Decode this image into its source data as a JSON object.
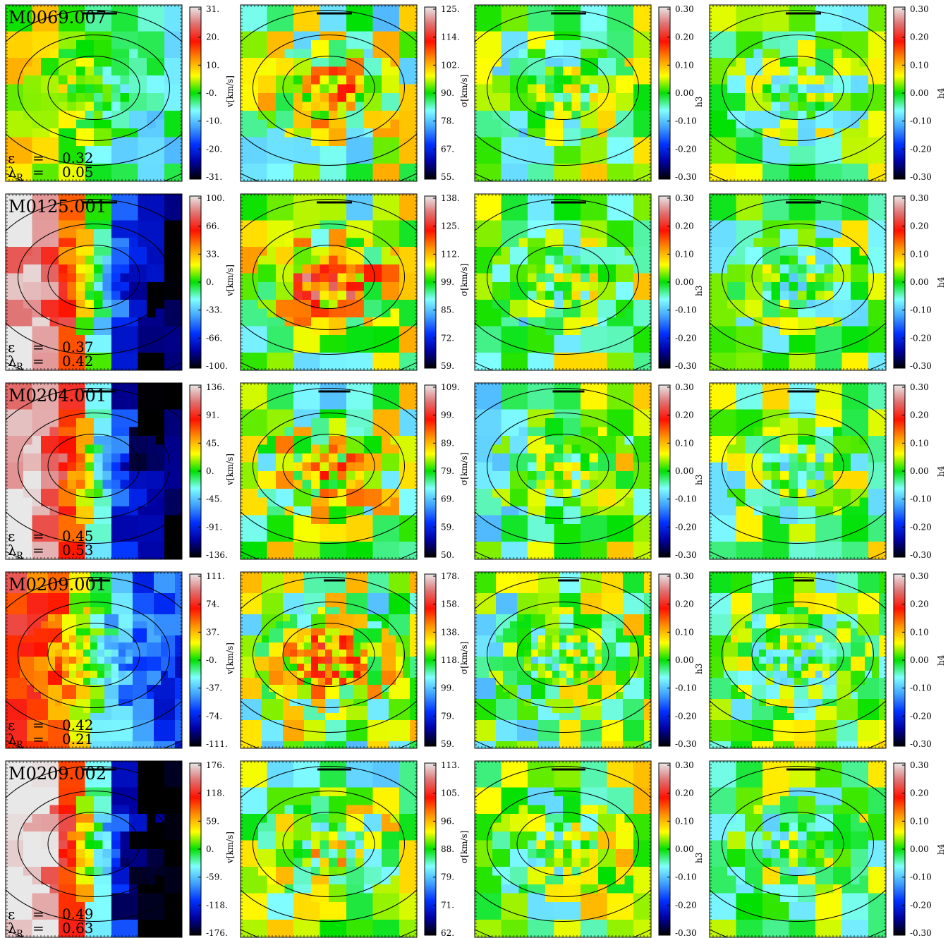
{
  "chart_data": {
    "type": "heatmap",
    "columns": [
      {
        "quantity": "v",
        "cbar_label": "v[km/s]"
      },
      {
        "quantity": "sigma",
        "cbar_label": "σ[km/s]"
      },
      {
        "quantity": "h3",
        "cbar_label": "h3"
      },
      {
        "quantity": "h4",
        "cbar_label": "h4"
      }
    ],
    "hermite_ticks": [
      "0.30",
      "0.20",
      "0.10",
      "0.00",
      "-0.10",
      "-0.20",
      "-0.30"
    ],
    "galaxies": [
      {
        "id": "M0069.007",
        "epsilon": "0.32",
        "lambda_R": "0.05",
        "v_ticks": [
          "31.",
          "20.",
          "10.",
          "-0.",
          "-10.",
          "-20.",
          "-31."
        ],
        "sigma_ticks": [
          "125.",
          "114.",
          "102.",
          "90.",
          "78.",
          "67.",
          "55."
        ]
      },
      {
        "id": "M0125.001",
        "epsilon": "0.37",
        "lambda_R": "0.42",
        "v_ticks": [
          "100.",
          "66.",
          "33.",
          "0.",
          "-33.",
          "-66.",
          "-100."
        ],
        "sigma_ticks": [
          "138.",
          "125.",
          "112.",
          "99.",
          "85.",
          "72.",
          "59."
        ]
      },
      {
        "id": "M0204.001",
        "epsilon": "0.45",
        "lambda_R": "0.53",
        "v_ticks": [
          "136.",
          "91.",
          "45.",
          "0.",
          "-45.",
          "-91.",
          "-136."
        ],
        "sigma_ticks": [
          "109.",
          "99.",
          "89.",
          "79.",
          "69.",
          "59.",
          "50."
        ]
      },
      {
        "id": "M0209.001",
        "epsilon": "0.42",
        "lambda_R": "0.21",
        "v_ticks": [
          "111.",
          "74.",
          "37.",
          "-0.",
          "-37.",
          "-74.",
          "-111."
        ],
        "sigma_ticks": [
          "178.",
          "158.",
          "138.",
          "118.",
          "99.",
          "79.",
          "59."
        ]
      },
      {
        "id": "M0209.002",
        "epsilon": "0.49",
        "lambda_R": "0.63",
        "v_ticks": [
          "176.",
          "118.",
          "59.",
          "0.",
          "-59.",
          "-118.",
          "-176."
        ],
        "sigma_ticks": [
          "113.",
          "105.",
          "96.",
          "88.",
          "79.",
          "71.",
          "62."
        ]
      }
    ],
    "epsilon_symbol": "ε",
    "lambda_symbol": "λ",
    "lambda_subscript": "R",
    "equals_sign": "=",
    "colors": {
      "colormap": [
        "#000000",
        "#0000a0",
        "#0030ff",
        "#3fa0ff",
        "#80ffff",
        "#00e000",
        "#ffff00",
        "#ff9000",
        "#ff1000",
        "#e07070",
        "#e8e8e8"
      ],
      "contour": "#000000",
      "frame": "#000000"
    }
  }
}
